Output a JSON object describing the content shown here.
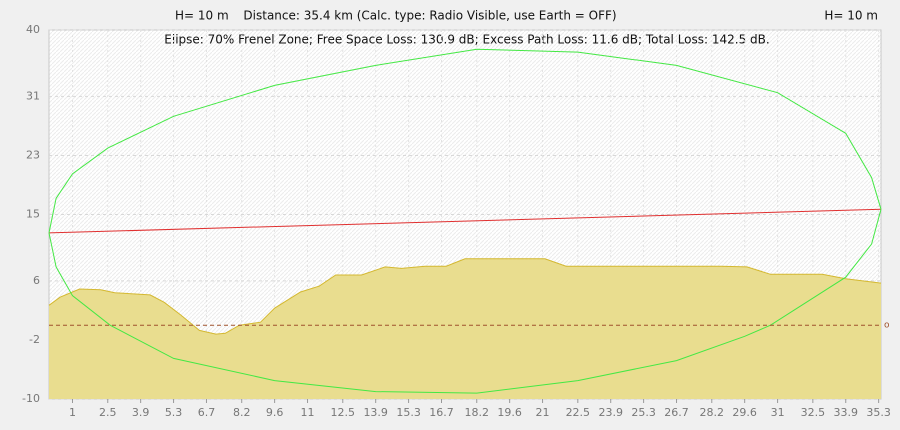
{
  "chart_data": {
    "type": "profile",
    "left_label": "H= 10 m",
    "title": "Distance: 35.4 km (Calc. type: Radio Visible, use Earth = OFF)",
    "right_label": "H= 10 m",
    "subtitle": "Elipse: 70% Frenel Zone;  Free Space Loss: 130.9 dB;  Excess Path Loss: 11.6 dB;   Total Loss: 142.5 dB.",
    "xlim": [
      0,
      35.4
    ],
    "ylim": [
      -10,
      40
    ],
    "xticks": [
      1,
      2.5,
      3.9,
      5.3,
      6.7,
      8.2,
      9.6,
      11,
      12.5,
      13.9,
      15.3,
      16.7,
      18.2,
      19.6,
      21,
      22.5,
      23.9,
      25.3,
      26.7,
      28.2,
      29.6,
      31,
      32.5,
      33.9,
      35.3
    ],
    "yticks": [
      40,
      31,
      23,
      15,
      6,
      -2,
      -10
    ],
    "grid": true,
    "reference_line": 0,
    "reference_color": "#a0522d",
    "reference_label": "o",
    "series": [
      {
        "color": "#d4b830",
        "fill": "#e9dd8f",
        "x": [
          0,
          0.47,
          1.3,
          2.2,
          2.8,
          4.3,
          4.9,
          5.6,
          6.4,
          7.1,
          7.5,
          8.1,
          9.0,
          9.6,
          10.7,
          11.5,
          12.2,
          13.3,
          14.3,
          15.0,
          16.0,
          16.9,
          17.7,
          21.1,
          22.0,
          28.6,
          29.7,
          30.7,
          32.9,
          33.9,
          35.4
        ],
        "values": [
          2.7,
          3.8,
          4.9,
          4.8,
          4.4,
          4.1,
          3.1,
          1.4,
          -0.7,
          -1.2,
          -1.1,
          0.0,
          0.4,
          2.3,
          4.5,
          5.3,
          6.8,
          6.8,
          7.9,
          7.7,
          8.0,
          8.0,
          9.0,
          9.0,
          8.0,
          8.0,
          7.9,
          6.9,
          6.9,
          6.3,
          5.7
        ]
      },
      {
        "color": "#e03030",
        "x": [
          0,
          35.4
        ],
        "values": [
          12.5,
          15.7
        ]
      },
      {
        "color": "#44e844",
        "x": [
          0,
          0.3,
          1,
          2.5,
          5.3,
          9.6,
          13.9,
          18.2,
          22.5,
          26.7,
          31,
          33.9,
          35,
          35.4
        ],
        "values": [
          12.5,
          17.2,
          20.5,
          24,
          28.3,
          32.5,
          35.2,
          37.4,
          37,
          35.2,
          31.5,
          26,
          20,
          15.7
        ]
      },
      {
        "color": "#44e844",
        "x": [
          0,
          0.3,
          1,
          2.6,
          5.3,
          9.6,
          13.9,
          18.2,
          22.5,
          26.7,
          29.6,
          30.7,
          33.9,
          35,
          35.4
        ],
        "values": [
          12.5,
          7.9,
          4,
          0,
          -4.5,
          -7.5,
          -9,
          -9.2,
          -7.5,
          -4.8,
          -1.5,
          0,
          6.5,
          11,
          15.7
        ]
      }
    ]
  }
}
